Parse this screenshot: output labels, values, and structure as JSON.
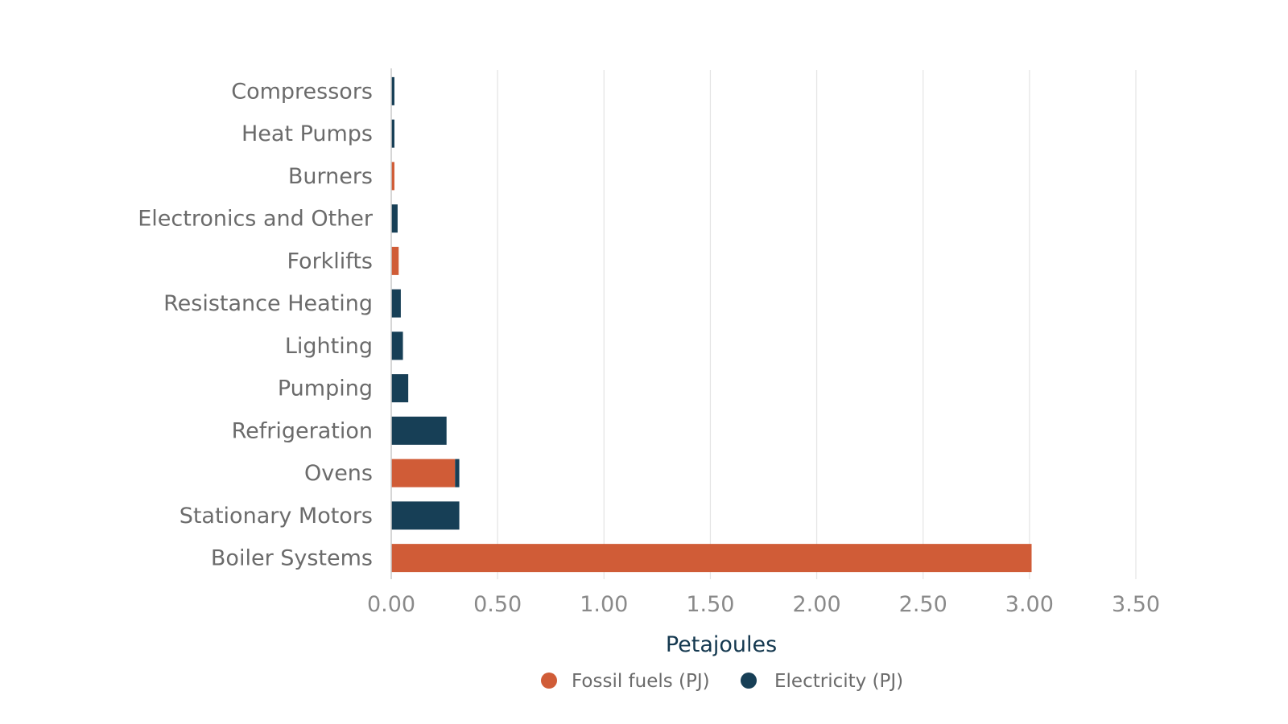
{
  "chart_data": {
    "type": "bar",
    "orientation": "horizontal",
    "stacked": true,
    "categories": [
      "Compressors",
      "Heat Pumps",
      "Burners",
      "Electronics and Other",
      "Forklifts",
      "Resistance Heating",
      "Lighting",
      "Pumping",
      "Refrigeration",
      "Ovens",
      "Stationary Motors",
      "Boiler Systems"
    ],
    "series": [
      {
        "name": "Fossil fuels (PJ)",
        "color": "#d05c37",
        "values": [
          0,
          0,
          0.015,
          0,
          0.035,
          0,
          0,
          0,
          0,
          0.3,
          0,
          3.01
        ]
      },
      {
        "name": "Electricity (PJ)",
        "color": "#173f56",
        "values": [
          0.015,
          0.015,
          0,
          0.03,
          0,
          0.045,
          0.055,
          0.08,
          0.26,
          0.02,
          0.32,
          0
        ]
      }
    ],
    "xlabel": "Petajoules",
    "ylabel": "",
    "xlim": [
      0,
      3.5
    ],
    "xticks": [
      "0.00",
      "0.50",
      "1.00",
      "1.50",
      "2.00",
      "2.50",
      "3.00",
      "3.50"
    ],
    "grid": "vertical",
    "legend": "bottom-center"
  }
}
